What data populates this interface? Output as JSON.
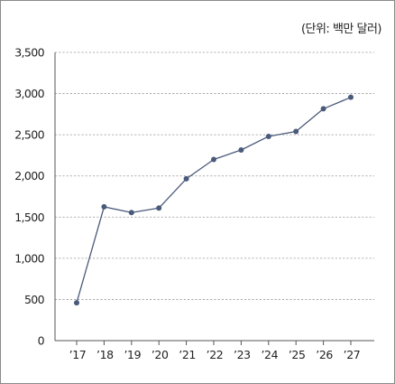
{
  "unit_label": "(단위: 백만 달러)",
  "chart_data": {
    "type": "line",
    "title": "",
    "xlabel": "",
    "ylabel": "",
    "unit": "(단위: 백만 달러)",
    "categories": [
      "’17",
      "’18",
      "’19",
      "’20",
      "’21",
      "’22",
      "’23",
      "’24",
      "’25",
      "’26",
      "’27"
    ],
    "series": [
      {
        "values": [
          460,
          1625,
          1555,
          1610,
          1965,
          2200,
          2315,
          2480,
          2540,
          2815,
          2955
        ],
        "color": "#4a5a7a"
      }
    ],
    "ylim": [
      0,
      3500
    ],
    "yticks": [
      0,
      500,
      1000,
      1500,
      2000,
      2500,
      3000,
      3500
    ],
    "ytick_labels": [
      "0",
      "500",
      "1,000",
      "1,500",
      "2,000",
      "2,500",
      "3,000",
      "3,500"
    ],
    "grid": true,
    "legend": "none"
  }
}
